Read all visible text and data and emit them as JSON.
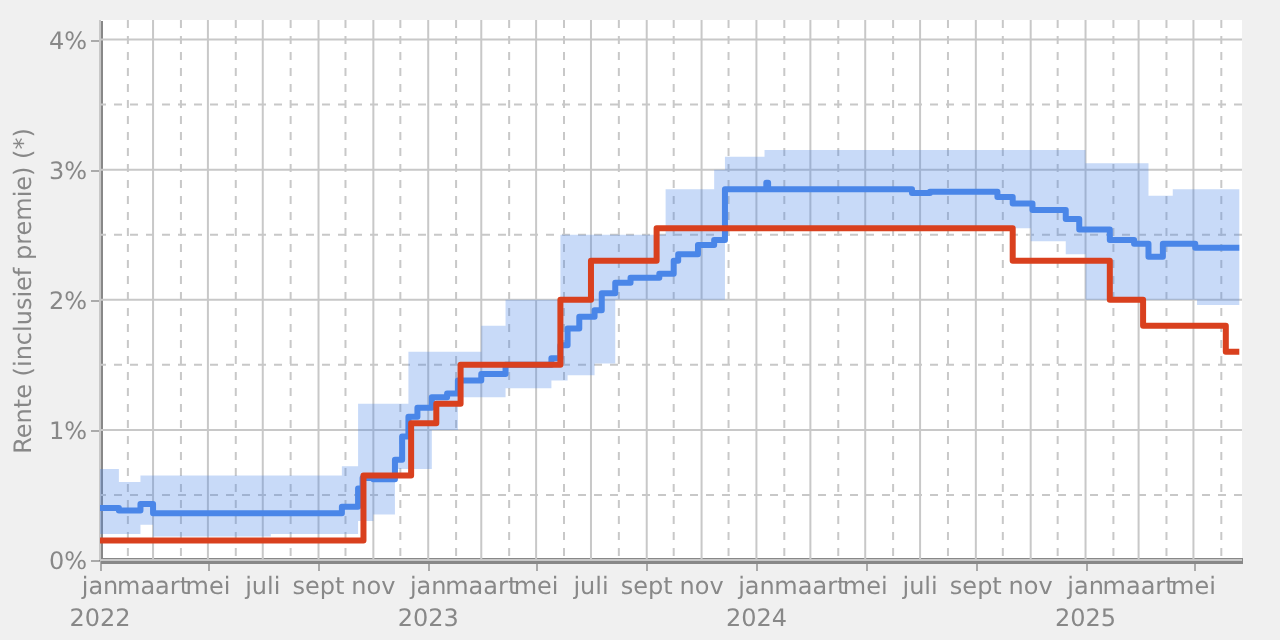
{
  "chart_data": {
    "type": "step",
    "ylabel": "Rente (inclusief premie) (*)",
    "xlim": [
      "2022-01-01",
      "2025-06-24"
    ],
    "ylim": [
      0,
      4.15
    ],
    "yticks": [
      {
        "value": 0,
        "label": "0%"
      },
      {
        "value": 0.5,
        "label": null
      },
      {
        "value": 1,
        "label": "1%"
      },
      {
        "value": 1.5,
        "label": null
      },
      {
        "value": 2,
        "label": "2%"
      },
      {
        "value": 2.5,
        "label": null
      },
      {
        "value": 3,
        "label": "3%"
      },
      {
        "value": 3.5,
        "label": null
      },
      {
        "value": 4,
        "label": "4%"
      }
    ],
    "xticks": [
      {
        "value": "2022-01-01",
        "label": "jan\n2022"
      },
      {
        "value": "2022-02-01",
        "label": null
      },
      {
        "value": "2022-03-01",
        "label": "maart"
      },
      {
        "value": "2022-04-01",
        "label": null
      },
      {
        "value": "2022-05-01",
        "label": "mei"
      },
      {
        "value": "2022-06-01",
        "label": null
      },
      {
        "value": "2022-07-01",
        "label": "juli"
      },
      {
        "value": "2022-08-01",
        "label": null
      },
      {
        "value": "2022-09-01",
        "label": "sept"
      },
      {
        "value": "2022-10-01",
        "label": null
      },
      {
        "value": "2022-11-01",
        "label": "nov"
      },
      {
        "value": "2022-12-01",
        "label": null
      },
      {
        "value": "2023-01-01",
        "label": "jan\n2023"
      },
      {
        "value": "2023-02-01",
        "label": null
      },
      {
        "value": "2023-03-01",
        "label": "maart"
      },
      {
        "value": "2023-04-01",
        "label": null
      },
      {
        "value": "2023-05-01",
        "label": "mei"
      },
      {
        "value": "2023-06-01",
        "label": null
      },
      {
        "value": "2023-07-01",
        "label": "juli"
      },
      {
        "value": "2023-08-01",
        "label": null
      },
      {
        "value": "2023-09-01",
        "label": "sept"
      },
      {
        "value": "2023-10-01",
        "label": null
      },
      {
        "value": "2023-11-01",
        "label": "nov"
      },
      {
        "value": "2023-12-01",
        "label": null
      },
      {
        "value": "2024-01-01",
        "label": "jan\n2024"
      },
      {
        "value": "2024-02-01",
        "label": null
      },
      {
        "value": "2024-03-01",
        "label": "maart"
      },
      {
        "value": "2024-04-01",
        "label": null
      },
      {
        "value": "2024-05-01",
        "label": "mei"
      },
      {
        "value": "2024-06-01",
        "label": null
      },
      {
        "value": "2024-07-01",
        "label": "juli"
      },
      {
        "value": "2024-08-01",
        "label": null
      },
      {
        "value": "2024-09-01",
        "label": "sept"
      },
      {
        "value": "2024-10-01",
        "label": null
      },
      {
        "value": "2024-11-01",
        "label": "nov"
      },
      {
        "value": "2024-12-01",
        "label": null
      },
      {
        "value": "2025-01-01",
        "label": "jan\n2025"
      },
      {
        "value": "2025-02-01",
        "label": null
      },
      {
        "value": "2025-03-01",
        "label": "maart"
      },
      {
        "value": "2025-04-01",
        "label": null
      },
      {
        "value": "2025-05-01",
        "label": "mei"
      },
      {
        "value": "2025-06-01",
        "label": null
      }
    ],
    "grid": true,
    "series": [
      {
        "color": "#4a86e8",
        "x": [
          "2022-01-01",
          "2022-01-22",
          "2022-02-15",
          "2022-03-01",
          "2022-07-10",
          "2022-09-27",
          "2022-10-15",
          "2022-10-20",
          "2022-11-01",
          "2022-11-25",
          "2022-12-03",
          "2022-12-10",
          "2022-12-20",
          "2023-01-05",
          "2023-01-22",
          "2023-02-03",
          "2023-03-01",
          "2023-03-28",
          "2023-05-18",
          "2023-05-28",
          "2023-06-05",
          "2023-06-18",
          "2023-07-05",
          "2023-07-13",
          "2023-07-28",
          "2023-08-14",
          "2023-09-15",
          "2023-09-22",
          "2023-10-01",
          "2023-10-06",
          "2023-10-28",
          "2023-11-15",
          "2023-11-27",
          "2024-01-10",
          "2024-01-12",
          "2024-01-14",
          "2024-06-22",
          "2024-07-12",
          "2024-09-25",
          "2024-10-12",
          "2024-11-01",
          "2024-11-03",
          "2024-12-10",
          "2024-12-25",
          "2025-01-01",
          "2025-01-28",
          "2025-02-24",
          "2025-03-12",
          "2025-03-28",
          "2025-04-08",
          "2025-05-03",
          "2025-05-05",
          "2025-06-21"
        ],
        "values": [
          0.4,
          0.38,
          0.43,
          0.36,
          0.36,
          0.41,
          0.55,
          0.63,
          0.62,
          0.77,
          0.95,
          1.1,
          1.17,
          1.25,
          1.28,
          1.38,
          1.43,
          1.5,
          1.55,
          1.65,
          1.78,
          1.87,
          1.92,
          2.05,
          2.13,
          2.17,
          2.2,
          2.2,
          2.3,
          2.35,
          2.42,
          2.46,
          2.85,
          2.85,
          2.9,
          2.85,
          2.82,
          2.83,
          2.79,
          2.74,
          2.74,
          2.69,
          2.62,
          2.54,
          2.54,
          2.46,
          2.43,
          2.33,
          2.43,
          2.43,
          2.4,
          2.4,
          2.4
        ],
        "lower": [
          0.2,
          0.2,
          0.27,
          0.18,
          0.2,
          0.2,
          0.3,
          0.3,
          0.35,
          0.7,
          0.7,
          0.7,
          0.7,
          1.0,
          1.0,
          1.25,
          1.25,
          1.32,
          1.38,
          1.38,
          1.42,
          1.42,
          1.51,
          1.51,
          2.0,
          2.0,
          2.0,
          2.0,
          2.0,
          2.0,
          2.0,
          2.0,
          2.55,
          2.55,
          2.55,
          2.55,
          2.55,
          2.55,
          2.55,
          2.55,
          2.45,
          2.45,
          2.35,
          2.35,
          2.0,
          2.0,
          2.0,
          2.0,
          2.0,
          2.0,
          2.0,
          1.96,
          1.96
        ],
        "upper": [
          0.7,
          0.6,
          0.65,
          0.65,
          0.65,
          0.72,
          1.2,
          1.2,
          1.2,
          1.2,
          1.2,
          1.6,
          1.6,
          1.6,
          1.6,
          1.6,
          1.8,
          2.0,
          2.0,
          2.5,
          2.5,
          2.5,
          2.5,
          2.5,
          2.5,
          2.5,
          2.5,
          2.85,
          2.85,
          2.85,
          2.85,
          3.0,
          3.1,
          3.15,
          3.15,
          3.15,
          3.15,
          3.15,
          3.15,
          3.15,
          3.15,
          3.15,
          3.15,
          3.15,
          3.05,
          3.05,
          3.05,
          2.8,
          2.8,
          2.85,
          2.85,
          2.85,
          2.85
        ]
      },
      {
        "color": "#d9401e",
        "x": [
          "2022-01-01",
          "2022-10-21",
          "2022-12-13",
          "2023-01-10",
          "2023-02-06",
          "2023-05-28",
          "2023-07-01",
          "2023-09-12",
          "2024-10-12",
          "2025-01-28",
          "2025-03-06",
          "2025-06-06",
          "2025-06-21"
        ],
        "values": [
          0.15,
          0.65,
          1.05,
          1.2,
          1.5,
          2.0,
          2.3,
          2.55,
          2.3,
          2.0,
          1.8,
          1.6,
          1.6
        ]
      }
    ]
  }
}
